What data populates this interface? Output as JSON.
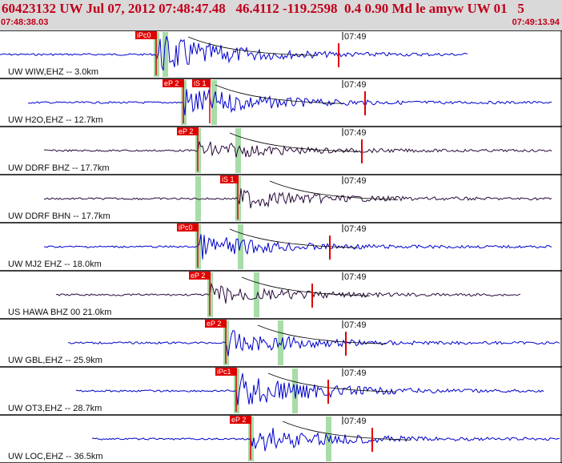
{
  "header": {
    "title": "60423132 UW Jul 07, 2012 07:48:47.48   46.4112 -119.2598  0.4 0.90 Md le amyw UW 01   5",
    "start_time": "07:48:38.03",
    "end_time": "07:49:13.94"
  },
  "colors": {
    "header_bg": "#d9d9d9",
    "accent_red": "#c0001a",
    "pick_red": "#e00000",
    "trace_blue": "#0000cc",
    "trace_dark": "#2a0a3a",
    "window_green": "#a8dca8"
  },
  "minute_mark": "07:49",
  "traces": [
    {
      "label": "UW WIW,EHZ -- 3.0km",
      "color": "blue",
      "amp": 10,
      "pick": "iPc0",
      "s_pick": ""
    },
    {
      "label": "UW H2O,EHZ -- 12.7km",
      "color": "blue",
      "amp": 8,
      "pick": "eP 2",
      "s_pick": "iS 1"
    },
    {
      "label": "UW DDRF BHZ -- 17.7km",
      "color": "dark",
      "amp": 5,
      "pick": "eP 2",
      "s_pick": ""
    },
    {
      "label": "UW DDRF BHN -- 17.7km",
      "color": "dark",
      "amp": 5,
      "pick": "",
      "s_pick": "iS 1"
    },
    {
      "label": "UW MJ2 EHZ -- 18.0km",
      "color": "blue",
      "amp": 6,
      "pick": "iPc0",
      "s_pick": ""
    },
    {
      "label": "US HAWA BHZ 00 21.0km",
      "color": "dark",
      "amp": 5,
      "pick": "eP 2",
      "s_pick": ""
    },
    {
      "label": "UW GBL,EHZ -- 25.9km",
      "color": "blue",
      "amp": 6,
      "pick": "eP 2",
      "s_pick": ""
    },
    {
      "label": "UW OT3,EHZ -- 28.7km",
      "color": "blue",
      "amp": 9,
      "pick": "iPc1",
      "s_pick": ""
    },
    {
      "label": "UW LOC,EHZ -- 36.5km",
      "color": "blue",
      "amp": 7,
      "pick": "eP 2",
      "s_pick": ""
    }
  ]
}
